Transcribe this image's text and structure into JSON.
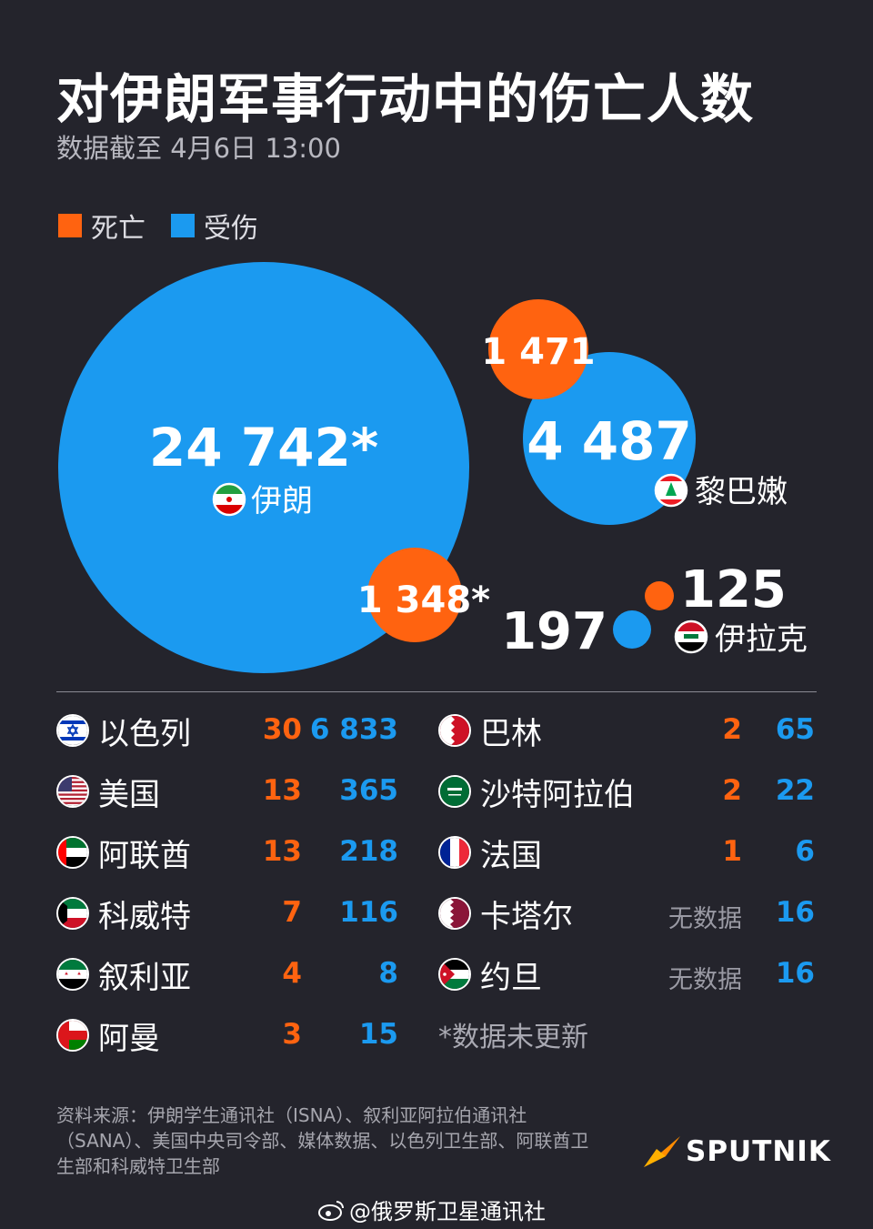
{
  "header": {
    "title": "对伊朗军事行动中的伤亡人数",
    "subtitle": "数据截至 4月6日 13:00"
  },
  "legend": [
    {
      "label": "死亡",
      "color": "#ff6310"
    },
    {
      "label": "受伤",
      "color": "#1b9af0"
    }
  ],
  "colors": {
    "deaths": "#ff6310",
    "injured": "#1b9af0",
    "background": "#24242c"
  },
  "chart_data": {
    "type": "bubble",
    "series": [
      {
        "name": "死亡",
        "color": "#ff6310"
      },
      {
        "name": "受伤",
        "color": "#1b9af0"
      }
    ],
    "bubbles": [
      {
        "country": "伊朗",
        "flag": "iran",
        "injured": 24742,
        "injured_label": "24 742*",
        "deaths": 1348,
        "deaths_label": "1 348*"
      },
      {
        "country": "黎巴嫩",
        "flag": "lebanon",
        "injured": 4487,
        "injured_label": "4 487",
        "deaths": 1471,
        "deaths_label": "1 471"
      },
      {
        "country": "伊拉克",
        "flag": "iraq",
        "injured": 197,
        "injured_label": "197",
        "deaths": 125,
        "deaths_label": "125"
      }
    ],
    "table": {
      "left": [
        {
          "country": "以色列",
          "flag": "israel",
          "deaths": "30",
          "injured": "6 833"
        },
        {
          "country": "美国",
          "flag": "usa",
          "deaths": "13",
          "injured": "365"
        },
        {
          "country": "阿联酋",
          "flag": "uae",
          "deaths": "13",
          "injured": "218"
        },
        {
          "country": "科威特",
          "flag": "kuwait",
          "deaths": "7",
          "injured": "116"
        },
        {
          "country": "叙利亚",
          "flag": "syria",
          "deaths": "4",
          "injured": "8"
        },
        {
          "country": "阿曼",
          "flag": "oman",
          "deaths": "3",
          "injured": "15"
        }
      ],
      "right": [
        {
          "country": "巴林",
          "flag": "bahrain",
          "deaths": "2",
          "injured": "65"
        },
        {
          "country": "沙特阿拉伯",
          "flag": "saudi",
          "deaths": "2",
          "injured": "22"
        },
        {
          "country": "法国",
          "flag": "france",
          "deaths": "1",
          "injured": "6"
        },
        {
          "country": "卡塔尔",
          "flag": "qatar",
          "deaths": "无数据",
          "injured": "16"
        },
        {
          "country": "约旦",
          "flag": "jordan",
          "deaths": "无数据",
          "injured": "16"
        }
      ]
    },
    "note": "*数据未更新"
  },
  "footer": {
    "source": "资料来源：伊朗学生通讯社（ISNA）、叙利亚阿拉伯通讯社（SANA）、美国中央司令部、媒体数据、以色列卫生部、阿联酋卫生部和科威特卫生部",
    "brand": "SPUTNIK",
    "weibo": "@俄罗斯卫星通讯社",
    "brand_icon": "sputnik-logo-icon",
    "weibo_icon": "weibo-icon"
  }
}
